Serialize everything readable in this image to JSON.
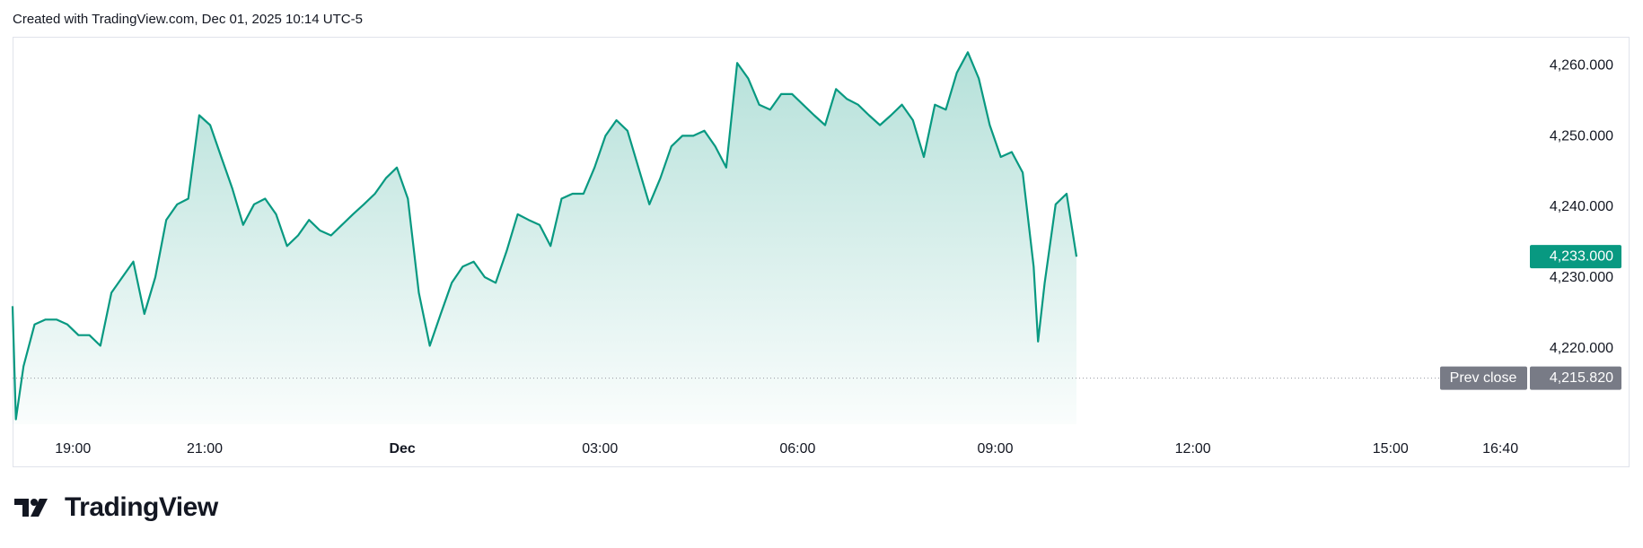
{
  "header": {
    "caption": "Created with TradingView.com, Dec 01, 2025 10:14 UTC-5"
  },
  "footer": {
    "brand": "TradingView"
  },
  "chart_data": {
    "type": "area",
    "color": "#089981",
    "x": [
      "18:05",
      "18:08",
      "18:15",
      "18:25",
      "18:35",
      "18:45",
      "18:55",
      "19:05",
      "19:15",
      "19:25",
      "19:35",
      "19:45",
      "19:55",
      "20:05",
      "20:15",
      "20:25",
      "20:35",
      "20:45",
      "20:55",
      "21:05",
      "21:15",
      "21:25",
      "21:35",
      "21:45",
      "21:55",
      "22:05",
      "22:15",
      "22:25",
      "22:35",
      "22:45",
      "22:55",
      "23:05",
      "23:15",
      "23:25",
      "23:35",
      "23:45",
      "23:55",
      "00:05",
      "00:15",
      "00:25",
      "00:35",
      "00:45",
      "00:55",
      "01:05",
      "01:15",
      "01:25",
      "01:35",
      "01:45",
      "01:55",
      "02:05",
      "02:15",
      "02:25",
      "02:35",
      "02:45",
      "02:55",
      "03:05",
      "03:15",
      "03:25",
      "03:35",
      "03:45",
      "03:55",
      "04:05",
      "04:15",
      "04:25",
      "04:35",
      "04:45",
      "04:55",
      "05:05",
      "05:15",
      "05:25",
      "05:35",
      "05:45",
      "05:55",
      "06:05",
      "06:15",
      "06:25",
      "06:35",
      "06:45",
      "06:55",
      "07:05",
      "07:15",
      "07:25",
      "07:35",
      "07:45",
      "07:55",
      "08:05",
      "08:15",
      "08:25",
      "08:35",
      "08:45",
      "08:55",
      "09:05",
      "09:15",
      "09:25",
      "09:35",
      "09:39",
      "09:45",
      "09:55",
      "10:05",
      "10:14"
    ],
    "values": [
      4226,
      4210,
      4217.5,
      4223.4,
      4224.1,
      4224.1,
      4223.4,
      4221.9,
      4221.9,
      4220.4,
      4227.9,
      4230.1,
      4232.3,
      4224.9,
      4230.1,
      4238.2,
      4240.4,
      4241.2,
      4253.0,
      4251.6,
      4247.1,
      4242.7,
      4237.5,
      4240.4,
      4241.2,
      4239.0,
      4234.5,
      4236.0,
      4238.2,
      4236.7,
      4236.0,
      4237.5,
      4239.0,
      4240.4,
      4241.9,
      4244.1,
      4245.6,
      4241.2,
      4227.9,
      4220.4,
      4224.9,
      4229.3,
      4231.6,
      4232.3,
      4230.1,
      4229.3,
      4233.8,
      4239.0,
      4238.2,
      4237.5,
      4234.5,
      4241.2,
      4241.9,
      4241.9,
      4245.6,
      4250.1,
      4252.3,
      4250.8,
      4245.6,
      4240.4,
      4244.1,
      4248.6,
      4250.1,
      4250.1,
      4250.8,
      4248.6,
      4245.6,
      4260.4,
      4258.2,
      4254.5,
      4253.8,
      4256.0,
      4256.0,
      4254.5,
      4253.0,
      4251.6,
      4256.7,
      4255.3,
      4254.5,
      4253.0,
      4251.6,
      4253.0,
      4254.5,
      4252.3,
      4247.1,
      4254.5,
      4253.8,
      4259.0,
      4261.9,
      4258.2,
      4251.6,
      4247.1,
      4247.8,
      4244.9,
      4231.6,
      4221,
      4229.3,
      4240.4,
      4241.9,
      4233.0
    ],
    "xlim": [
      "18:05",
      "17:02"
    ],
    "xticks": [
      "19:00",
      "21:00",
      {
        "value": "00:00",
        "label": "Dec"
      },
      "03:00",
      "06:00",
      "09:00",
      "12:00",
      "15:00",
      "16:40"
    ],
    "ylim": [
      4209.3,
      4264.1
    ],
    "yticks": [
      {
        "value": 4220,
        "label": "4,220.000"
      },
      {
        "value": 4230,
        "label": "4,230.000"
      },
      {
        "value": 4240,
        "label": "4,240.000"
      },
      {
        "value": 4250,
        "label": "4,250.000"
      },
      {
        "value": 4260,
        "label": "4,260.000"
      }
    ],
    "last_price": {
      "value": 4233.0,
      "label": "4,233.000"
    },
    "prev_close": {
      "name": "Prev close",
      "value": 4215.82,
      "label": "4,215.820"
    }
  }
}
